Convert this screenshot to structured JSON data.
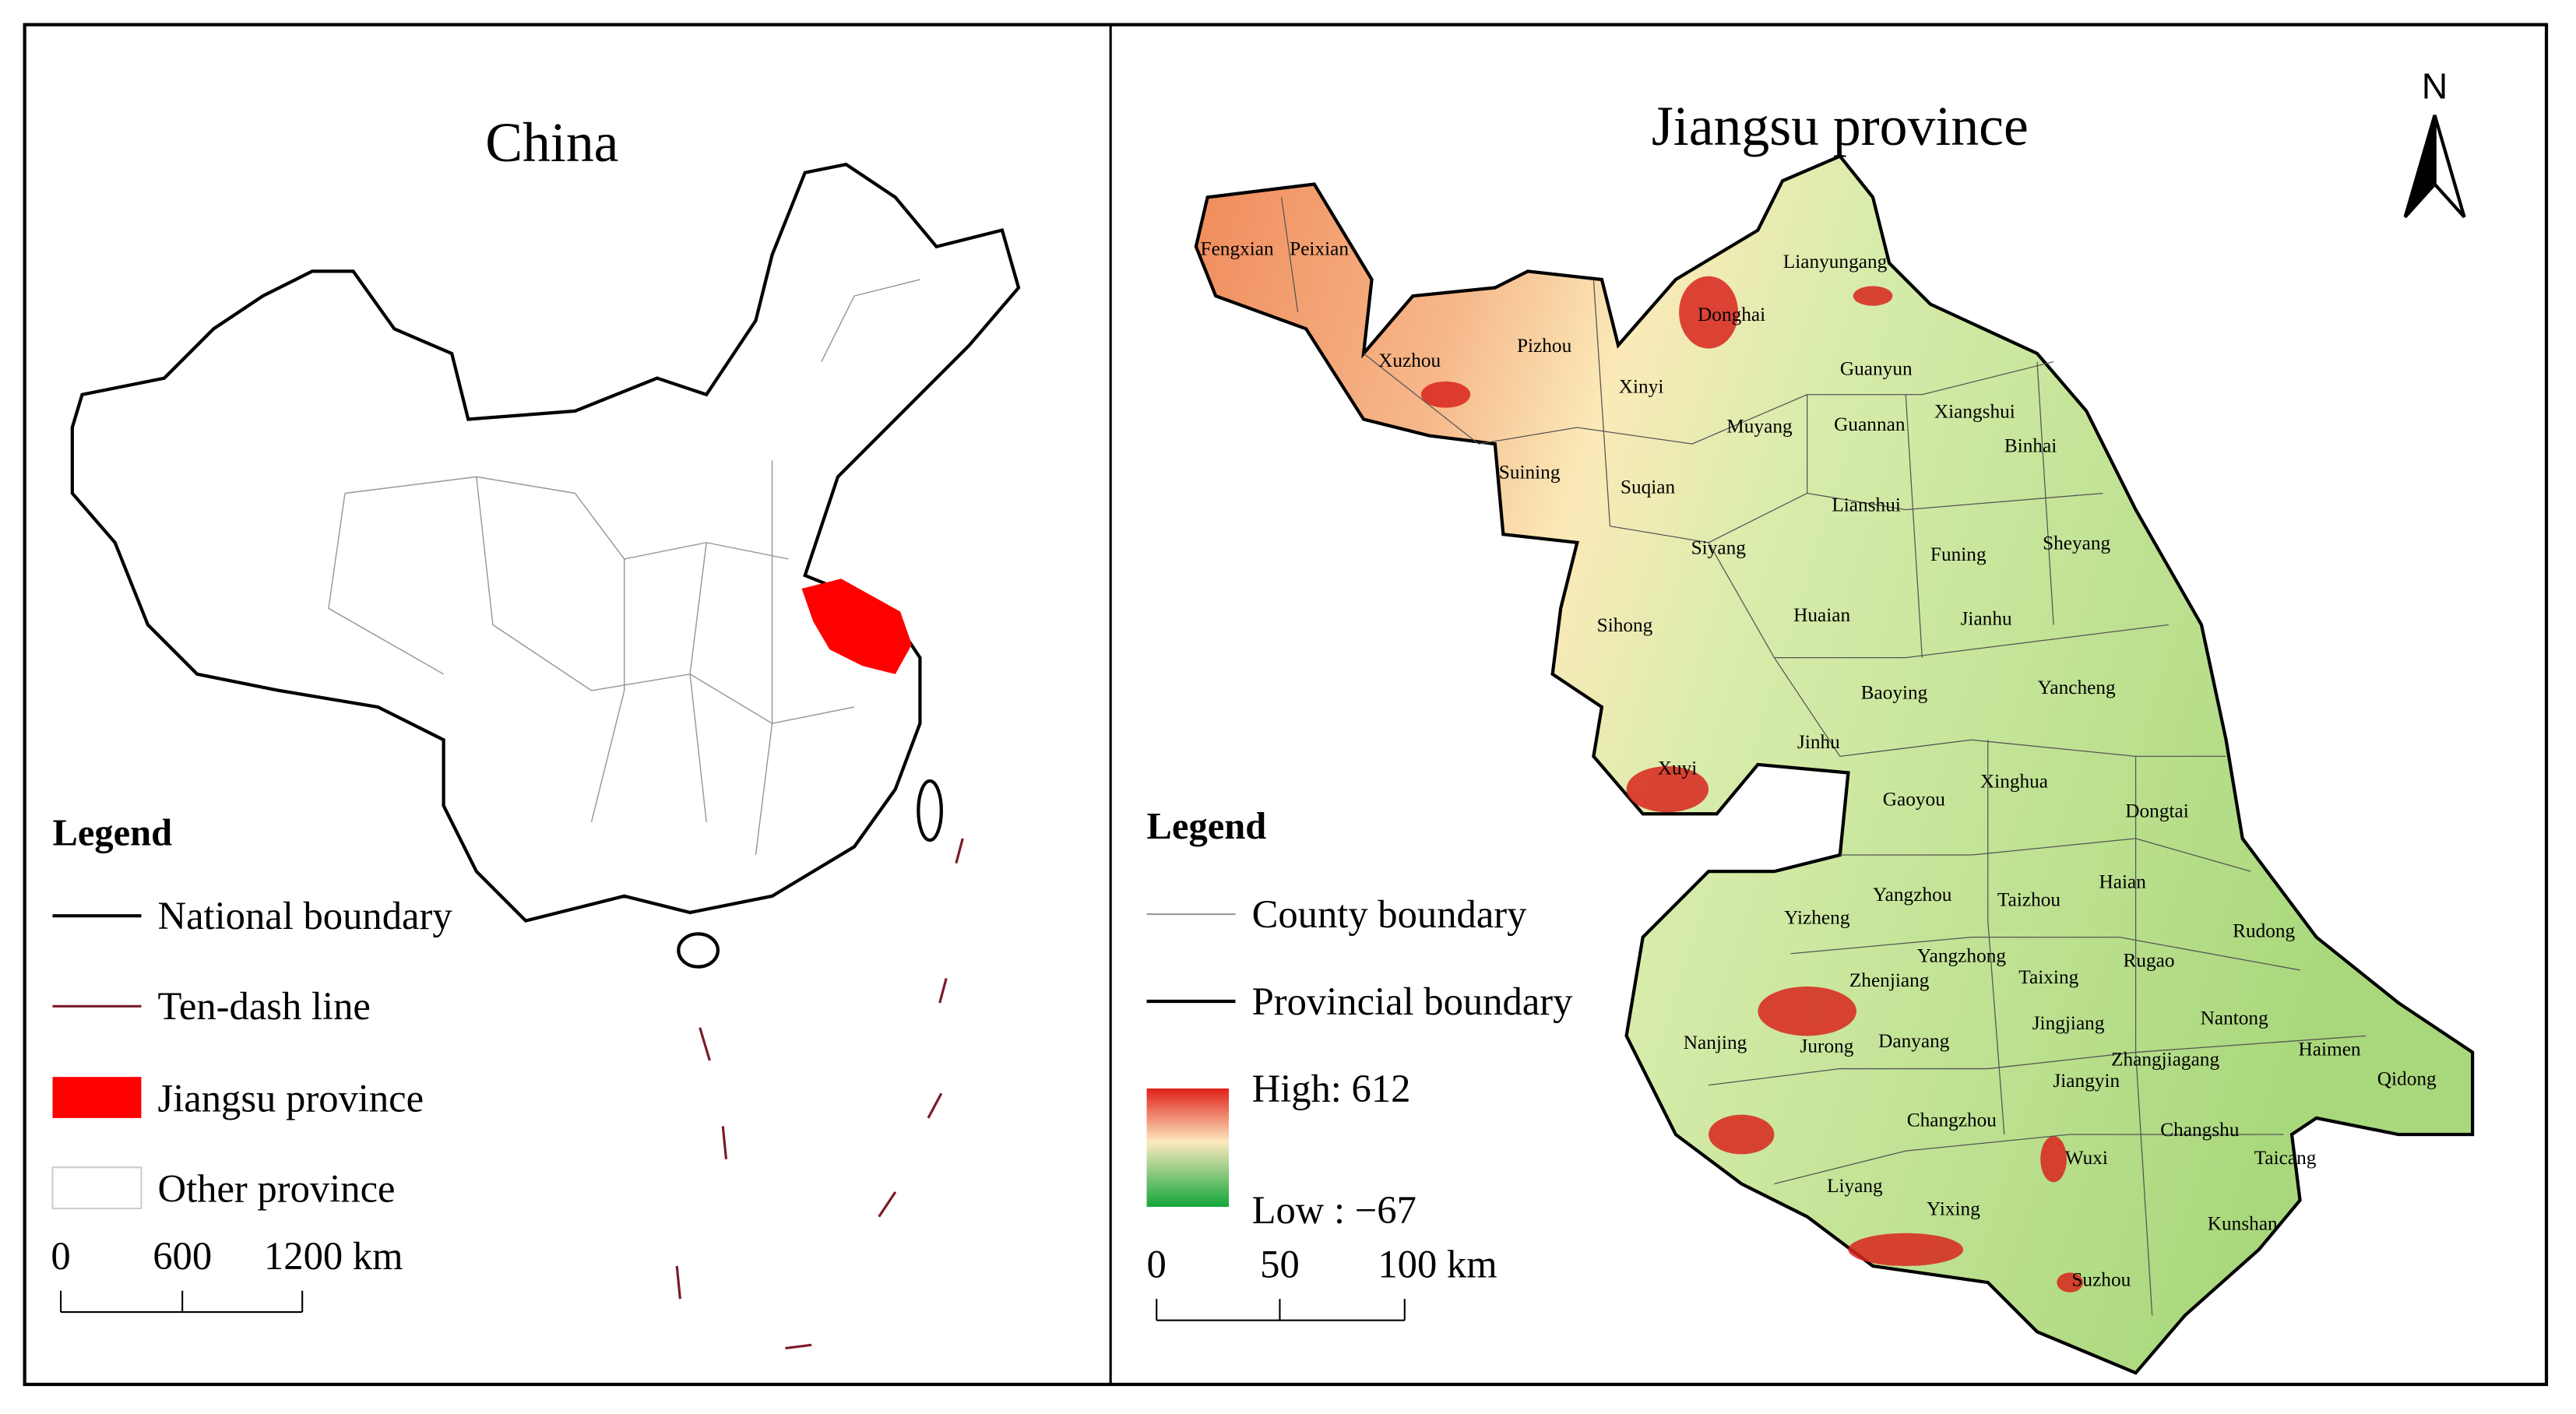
{
  "left_panel": {
    "title": "China",
    "legend": {
      "title": "Legend",
      "items": [
        "National boundary",
        "Ten-dash line",
        "Jiangsu province",
        "Other province"
      ]
    },
    "scale": {
      "labels": [
        "0",
        "600",
        "1200 km"
      ]
    }
  },
  "right_panel": {
    "title": "Jiangsu province",
    "north": "N",
    "legend": {
      "title": "Legend",
      "items": [
        "County boundary",
        "Provincial boundary"
      ],
      "high": "High: 612",
      "low": "Low : −67"
    },
    "scale": {
      "labels": [
        "0",
        "50",
        "100 km"
      ]
    },
    "counties": [
      "Fengxian",
      "Peixian",
      "Xuzhou",
      "Pizhou",
      "Xinyi",
      "Donghai",
      "Lianyungang",
      "Guanyun",
      "Xiangshui",
      "Guannan",
      "Binhai",
      "Muyang",
      "Suining",
      "Suqian",
      "Lianshui",
      "Siyang",
      "Sheyang",
      "Funing",
      "Sihong",
      "Huaian",
      "Jianhu",
      "Baoying",
      "Yancheng",
      "Jinhu",
      "Xuyi",
      "Xinghua",
      "Gaoyou",
      "Dongtai",
      "Yizheng",
      "Yangzhou",
      "Taizhou",
      "Haian",
      "Rudong",
      "Yangzhong",
      "Zhenjiang",
      "Taixing",
      "Rugao",
      "Nanjing",
      "Jurong",
      "Danyang",
      "Jingjiang",
      "Zhangjiagang",
      "Nantong",
      "Haimen",
      "Qidong",
      "Jiangyin",
      "Changzhou",
      "Changshu",
      "Wuxi",
      "Taicang",
      "Liyang",
      "Yixing",
      "Kunshan",
      "Suzhou"
    ]
  }
}
